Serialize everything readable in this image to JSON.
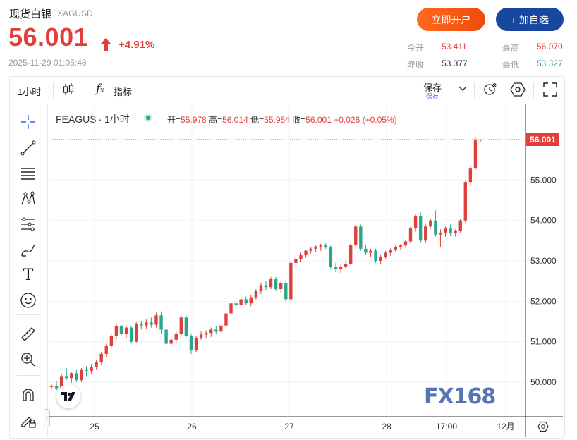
{
  "header": {
    "title": "现货白银",
    "code": "XAGUSD",
    "price": "56.001",
    "change_pct": "+4.91%",
    "timestamp": "2025-11-29 01:05:48",
    "open_account_label": "立即开户",
    "add_watch_label": "+ 加自选"
  },
  "stats": {
    "open_label": "今开",
    "open_value": "53.411",
    "high_label": "最高",
    "high_value": "56.070",
    "prev_close_label": "昨收",
    "prev_close_value": "53.377",
    "low_label": "最低",
    "low_value": "53.327"
  },
  "toolbar": {
    "interval": "1小时",
    "indicators_label": "指标",
    "save_label": "保存",
    "save_sub": "保存"
  },
  "legend": {
    "symbol": "FEAGUS",
    "sep": "·",
    "interval": "1小时",
    "open_label": "开=",
    "open": "55.978",
    "high_label": "高=",
    "high": "56.014",
    "low_label": "低=",
    "low": "55.954",
    "close_label": "收=",
    "close": "56.001",
    "change": "+0.026 (+0.05%)"
  },
  "price_tag": "56.001",
  "watermark": "FX168",
  "colors": {
    "up": "#e0403b",
    "down": "#2aa68f",
    "accent": "#17479e",
    "orange": "#f04a0a"
  },
  "icons": [
    "crosshair-icon",
    "trend-line-icon",
    "horizontal-lines-icon",
    "pattern-icon",
    "fib-icon",
    "brush-icon",
    "text-icon",
    "emoji-icon",
    "ruler-icon",
    "zoom-in-icon",
    "magnet-icon",
    "lock-pencil-icon",
    "candles-icon",
    "fx-icon",
    "chevron-down-icon",
    "alarm-icon",
    "settings-hex-icon",
    "fullscreen-icon",
    "gear-icon",
    "tradingview-logo-icon",
    "arrow-up-icon"
  ],
  "chart_data": {
    "type": "candlestick",
    "x_labels": [
      "25",
      "26",
      "27",
      "28",
      "17:00",
      "12月"
    ],
    "y_ticks": [
      "56.000",
      "55.000",
      "54.000",
      "53.000",
      "52.000",
      "51.000",
      "50.000"
    ],
    "ylim": [
      49.3,
      56.9
    ],
    "candles": [
      [
        49.88,
        49.95,
        49.82,
        49.9
      ],
      [
        49.9,
        50.02,
        49.8,
        49.85
      ],
      [
        49.85,
        50.2,
        49.82,
        50.15
      ],
      [
        50.15,
        50.35,
        50.05,
        50.1
      ],
      [
        50.1,
        50.25,
        49.98,
        50.22
      ],
      [
        50.22,
        50.3,
        50.0,
        50.05
      ],
      [
        50.05,
        50.35,
        50.0,
        50.3
      ],
      [
        50.3,
        50.4,
        50.15,
        50.28
      ],
      [
        50.28,
        50.45,
        50.2,
        50.38
      ],
      [
        50.38,
        50.55,
        50.3,
        50.5
      ],
      [
        50.5,
        50.75,
        50.42,
        50.7
      ],
      [
        50.7,
        50.95,
        50.62,
        50.9
      ],
      [
        50.9,
        51.2,
        50.85,
        51.15
      ],
      [
        51.15,
        51.45,
        51.05,
        51.38
      ],
      [
        51.38,
        51.42,
        51.15,
        51.2
      ],
      [
        51.2,
        51.4,
        51.1,
        51.35
      ],
      [
        51.35,
        51.4,
        50.95,
        51.0
      ],
      [
        51.0,
        51.5,
        50.98,
        51.45
      ],
      [
        51.45,
        51.52,
        51.3,
        51.4
      ],
      [
        51.4,
        51.55,
        51.32,
        51.48
      ],
      [
        51.48,
        51.6,
        51.35,
        51.42
      ],
      [
        51.42,
        51.72,
        51.35,
        51.65
      ],
      [
        51.65,
        51.75,
        51.2,
        51.3
      ],
      [
        51.3,
        51.35,
        50.8,
        50.95
      ],
      [
        50.95,
        51.1,
        50.88,
        51.05
      ],
      [
        51.05,
        51.25,
        50.98,
        51.2
      ],
      [
        51.2,
        51.65,
        51.15,
        51.6
      ],
      [
        51.6,
        51.65,
        51.1,
        51.15
      ],
      [
        51.15,
        51.2,
        50.7,
        50.8
      ],
      [
        50.8,
        51.15,
        50.75,
        51.1
      ],
      [
        51.1,
        51.25,
        51.05,
        51.18
      ],
      [
        51.18,
        51.28,
        51.1,
        51.22
      ],
      [
        51.22,
        51.35,
        51.12,
        51.3
      ],
      [
        51.3,
        51.38,
        51.2,
        51.25
      ],
      [
        51.25,
        51.45,
        51.2,
        51.4
      ],
      [
        51.4,
        51.75,
        51.35,
        51.7
      ],
      [
        51.7,
        52.05,
        51.62,
        51.95
      ],
      [
        51.95,
        52.1,
        51.8,
        51.9
      ],
      [
        51.9,
        52.12,
        51.85,
        52.05
      ],
      [
        52.05,
        52.12,
        51.9,
        51.95
      ],
      [
        51.95,
        52.15,
        51.88,
        52.1
      ],
      [
        52.1,
        52.3,
        52.05,
        52.25
      ],
      [
        52.25,
        52.45,
        52.18,
        52.4
      ],
      [
        52.4,
        52.5,
        52.28,
        52.35
      ],
      [
        52.35,
        52.6,
        52.3,
        52.55
      ],
      [
        52.55,
        52.6,
        52.25,
        52.3
      ],
      [
        52.3,
        52.5,
        52.2,
        52.45
      ],
      [
        52.45,
        52.55,
        51.95,
        52.05
      ],
      [
        52.05,
        53.0,
        52.0,
        52.95
      ],
      [
        52.95,
        53.1,
        52.88,
        53.05
      ],
      [
        53.05,
        53.2,
        52.98,
        53.15
      ],
      [
        53.15,
        53.28,
        53.08,
        53.25
      ],
      [
        53.25,
        53.35,
        53.18,
        53.3
      ],
      [
        53.3,
        53.4,
        53.22,
        53.35
      ],
      [
        53.35,
        53.42,
        53.25,
        53.38
      ],
      [
        53.38,
        53.45,
        53.3,
        53.33
      ],
      [
        53.33,
        53.38,
        52.8,
        52.85
      ],
      [
        52.85,
        52.95,
        52.72,
        52.8
      ],
      [
        52.8,
        52.9,
        52.7,
        52.85
      ],
      [
        52.85,
        53.0,
        52.78,
        52.92
      ],
      [
        52.92,
        53.45,
        52.88,
        53.4
      ],
      [
        53.4,
        53.9,
        53.35,
        53.85
      ],
      [
        53.85,
        53.9,
        53.25,
        53.3
      ],
      [
        53.3,
        53.4,
        53.15,
        53.2
      ],
      [
        53.2,
        53.3,
        53.1,
        53.25
      ],
      [
        53.25,
        53.3,
        52.95,
        53.0
      ],
      [
        53.0,
        53.15,
        52.92,
        53.1
      ],
      [
        53.1,
        53.25,
        53.05,
        53.2
      ],
      [
        53.2,
        53.32,
        53.12,
        53.28
      ],
      [
        53.28,
        53.4,
        53.22,
        53.35
      ],
      [
        53.35,
        53.42,
        53.28,
        53.38
      ],
      [
        53.38,
        53.52,
        53.32,
        53.48
      ],
      [
        53.48,
        53.85,
        53.42,
        53.8
      ],
      [
        53.8,
        54.15,
        53.72,
        54.1
      ],
      [
        54.1,
        54.2,
        53.45,
        53.5
      ],
      [
        53.5,
        53.9,
        53.45,
        53.85
      ],
      [
        53.85,
        54.05,
        53.8,
        54.0
      ],
      [
        54.0,
        54.25,
        53.6,
        53.65
      ],
      [
        53.65,
        53.78,
        53.35,
        53.7
      ],
      [
        53.7,
        53.85,
        53.6,
        53.8
      ],
      [
        53.8,
        53.9,
        53.62,
        53.68
      ],
      [
        53.68,
        53.78,
        53.6,
        53.75
      ],
      [
        53.75,
        54.05,
        53.7,
        54.0
      ],
      [
        54.0,
        55.0,
        53.95,
        54.95
      ],
      [
        54.95,
        55.35,
        54.85,
        55.3
      ],
      [
        55.3,
        56.07,
        55.25,
        55.98
      ],
      [
        55.98,
        56.01,
        55.95,
        56.0
      ]
    ]
  }
}
